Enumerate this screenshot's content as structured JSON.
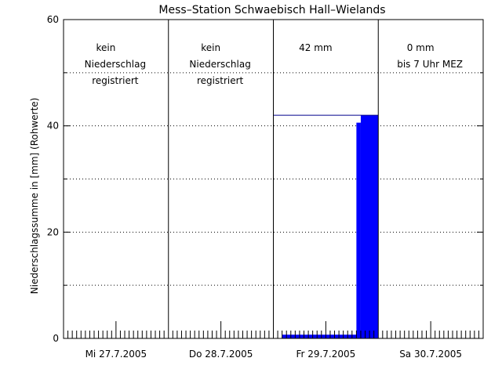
{
  "chart_data": {
    "type": "bar",
    "title": "Mess–Station Schwaebisch Hall–Wielands",
    "xlabel": "",
    "ylabel": "Niederschlagssumme in [mm] (Rohwerte)",
    "ylim": [
      0,
      60
    ],
    "yticks": [
      0,
      20,
      40,
      60
    ],
    "grid": true,
    "bar_color": "#0000ff",
    "days": [
      {
        "label": "Mi 27.7.2005",
        "annotation": [
          "kein",
          "Niederschlag",
          "registriert"
        ]
      },
      {
        "label": "Do 28.7.2005",
        "annotation": [
          "kein",
          "Niederschlag",
          "registriert"
        ]
      },
      {
        "label": "Fr 29.7.2005",
        "annotation": [
          "42 mm"
        ]
      },
      {
        "label": "Sa 30.7.2005",
        "annotation": [
          "0 mm",
          "bis 7 Uhr MEZ"
        ]
      }
    ],
    "cumulative": [
      {
        "day": 2,
        "from_hour": 2,
        "to_hour": 16,
        "value": 0.7
      },
      {
        "day": 2,
        "from_hour": 16,
        "to_hour": 19,
        "value": 0.7
      },
      {
        "day": 2,
        "from_hour": 19,
        "to_hour": 20,
        "value": 40.6
      },
      {
        "day": 2,
        "from_hour": 20,
        "to_hour": 24,
        "value": 42
      }
    ],
    "daily_total_line": {
      "day": 2,
      "value": 42
    }
  }
}
